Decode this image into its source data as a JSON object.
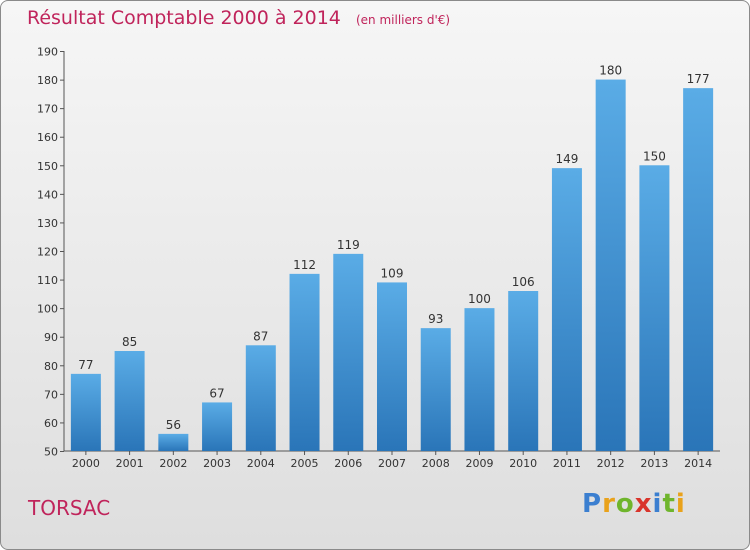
{
  "title": "Résultat Comptable 2000 à 2014",
  "unit": "(en milliers d'€)",
  "place": "TORSAC",
  "logo": {
    "letters": [
      "P",
      "r",
      "o",
      "x",
      "i",
      "t",
      "i"
    ],
    "colors": [
      "#3b7fd0",
      "#e9a21b",
      "#6fb52c",
      "#d9342b",
      "#3b7fd0",
      "#6fb52c",
      "#e9a21b"
    ]
  },
  "colors": {
    "bar_top": "#5aace6",
    "bar_bottom": "#2a75b8",
    "title": "#c0245b"
  },
  "chart_data": {
    "type": "bar",
    "categories": [
      "2000",
      "2001",
      "2002",
      "2003",
      "2004",
      "2005",
      "2006",
      "2007",
      "2008",
      "2009",
      "2010",
      "2011",
      "2012",
      "2013",
      "2014"
    ],
    "values": [
      77,
      85,
      56,
      67,
      87,
      112,
      119,
      109,
      93,
      100,
      106,
      149,
      180,
      150,
      177
    ],
    "ylim": [
      50,
      190
    ],
    "yticks": [
      50,
      60,
      70,
      80,
      90,
      100,
      110,
      120,
      130,
      140,
      150,
      160,
      170,
      180,
      190
    ],
    "grid": false,
    "data_labels": true
  }
}
